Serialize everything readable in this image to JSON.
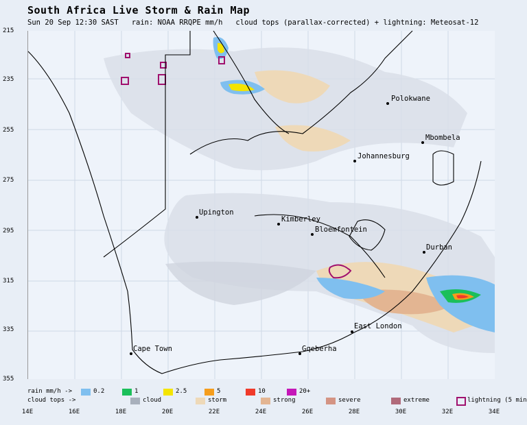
{
  "header": {
    "title": "South Africa Live Storm & Rain Map",
    "subtitle": "Sun 20 Sep 12:30 SAST   rain: NOAA RRQPE mm/h   cloud tops (parallax-corrected) + lightning: Meteosat-12"
  },
  "axes": {
    "y_labels": [
      "215",
      "235",
      "255",
      "275",
      "295",
      "315",
      "335",
      "355"
    ],
    "x_labels": [
      "14E",
      "16E",
      "18E",
      "20E",
      "22E",
      "24E",
      "26E",
      "28E",
      "30E",
      "32E",
      "34E"
    ]
  },
  "cities": [
    {
      "name": "Polokwane"
    },
    {
      "name": "Mbombela"
    },
    {
      "name": "Johannesburg"
    },
    {
      "name": "Upington"
    },
    {
      "name": "Kimberley"
    },
    {
      "name": "Bloemfontein"
    },
    {
      "name": "Durban"
    },
    {
      "name": "East London"
    },
    {
      "name": "Cape Town"
    },
    {
      "name": "Gqeberha"
    }
  ],
  "legend": {
    "rain_label": "rain mm/h ->",
    "rain": [
      {
        "label": "0.2",
        "color": "#7fbfef"
      },
      {
        "label": "1",
        "color": "#1bbf5a"
      },
      {
        "label": "2.5",
        "color": "#f4e400"
      },
      {
        "label": "5",
        "color": "#f59d1c"
      },
      {
        "label": "10",
        "color": "#f03a2a"
      },
      {
        "label": "20+",
        "color": "#c517b8"
      }
    ],
    "cloud_label": "cloud tops ->",
    "cloud": [
      {
        "label": "cloud",
        "color": "#a8b0bc"
      },
      {
        "label": "storm",
        "color": "#eed9b8"
      },
      {
        "label": "strong",
        "color": "#e3b592"
      },
      {
        "label": "severe",
        "color": "#d49484"
      },
      {
        "label": "extreme",
        "color": "#b06a7a"
      }
    ],
    "lightning_label": "lightning (5 min",
    "lightning_color": "#a0106e"
  }
}
